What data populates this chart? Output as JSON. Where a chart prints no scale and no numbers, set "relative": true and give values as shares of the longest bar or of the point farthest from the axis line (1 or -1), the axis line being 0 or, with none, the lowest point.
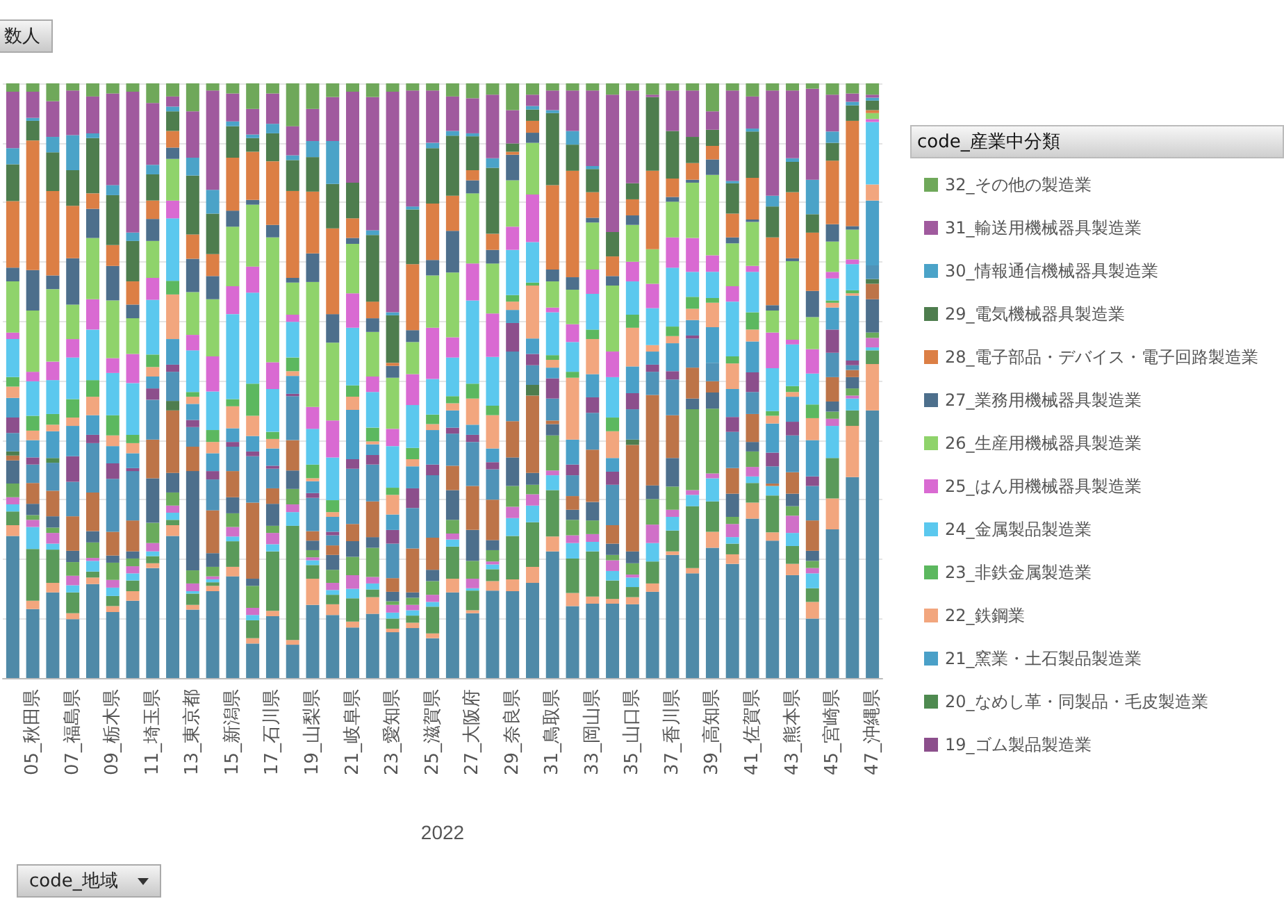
{
  "chart_data": {
    "type": "bar",
    "stacked": true,
    "relative": true,
    "grid": "y",
    "legend": "right",
    "legend_title": "code_産業中分類",
    "xlabel": "2022",
    "annotations": [
      "数人",
      "code_地域"
    ],
    "categories": [
      null,
      "05_秋田県",
      null,
      "07_福島県",
      null,
      "09_栃木県",
      null,
      "11_埼玉県",
      null,
      "13_東京都",
      null,
      "15_新潟県",
      null,
      "17_石川県",
      null,
      "19_山梨県",
      null,
      "21_岐阜県",
      null,
      "23_愛知県",
      null,
      "25_滋賀県",
      null,
      "27_大阪府",
      null,
      "29_奈良県",
      null,
      "31_鳥取県",
      null,
      "33_岡山県",
      null,
      "35_山口県",
      null,
      "37_香川県",
      null,
      "39_高知県",
      null,
      "41_佐賀県",
      null,
      "43_熊本県",
      null,
      "45_宮崎県",
      null,
      "47_沖縄県"
    ],
    "series": [
      {
        "color": "#4f8aa8",
        "values": [
          0.239,
          0.116,
          0.144,
          0.099,
          0.158,
          0.111,
          0.13,
          0.185,
          0.239,
          0.115,
          0.146,
          0.171,
          0.058,
          0.104,
          0.056,
          0.123,
          0.106,
          0.085,
          0.108,
          0.077,
          0.084,
          0.067,
          0.144,
          0.109,
          0.147,
          0.146,
          0.16,
          0.213,
          0.121,
          0.125,
          0.125,
          0.124,
          0.145,
          0.207,
          0.176,
          0.219,
          0.192,
          0.268,
          0.231,
          0.173,
          0.1,
          0.25,
          0.338,
          0.45
        ]
      },
      {
        "color": "#f2a67e",
        "values": [
          0.018,
          0.014,
          0.016,
          0.01,
          0.011,
          0.01,
          0.016,
          0.008,
          0.018,
          0.008,
          0.009,
          0.016,
          0.009,
          0.009,
          0.008,
          0.044,
          0.018,
          0.01,
          0.028,
          0.006,
          0.009,
          0.008,
          0.023,
          0.005,
          0.016,
          0.02,
          0.027,
          0.025,
          0.022,
          0.012,
          0.008,
          0.012,
          0.014,
          0.006,
          0.009,
          0.027,
          0.016,
          0.027,
          0.014,
          0.019,
          0.028,
          0.052,
          0.086,
          0.078
        ]
      },
      {
        "color": "#5a9a5a",
        "values": [
          0.023,
          0.087,
          0.056,
          0.035,
          0.01,
          0.017,
          0.018,
          0.012,
          0.009,
          0.019,
          0.006,
          0.043,
          0.03,
          0.1,
          0.192,
          0.023,
          0.016,
          0.039,
          0.013,
          0.017,
          0.012,
          0.045,
          0.054,
          0.033,
          0.02,
          0.073,
          0.075,
          0.078,
          0.058,
          0.076,
          0.031,
          0.017,
          0.037,
          0.035,
          0.104,
          0.051,
          0.018,
          0.033,
          0.062,
          0.03,
          0.023,
          0.068,
          0.026,
          0.023
        ]
      },
      {
        "color": "#5bc8ee",
        "values": [
          0.012,
          0.037,
          0.01,
          0.012,
          0.018,
          0.014,
          0.012,
          0.008,
          0.012,
          0.004,
          0.005,
          0.008,
          0.009,
          0.012,
          0.023,
          0.008,
          0.008,
          0.016,
          0.01,
          0.01,
          0.009,
          0.008,
          0.012,
          0.004,
          0.008,
          0.03,
          0.028,
          0.025,
          0.026,
          0.016,
          0.016,
          0.016,
          0.031,
          0.023,
          0.019,
          0.039,
          0.011,
          0.011,
          0.016,
          0.022,
          0.025,
          0.054,
          0.02,
          0.005
        ]
      },
      {
        "color": "#d070c8",
        "values": [
          0.012,
          0.012,
          0.018,
          0.016,
          0.005,
          0.013,
          0.012,
          0.014,
          0.012,
          0.013,
          0.005,
          0.016,
          0.012,
          0.019,
          0.013,
          0.005,
          0.012,
          0.023,
          0.011,
          0.013,
          0.009,
          0.012,
          0.01,
          0.016,
          0.005,
          0.019,
          0.019,
          0.008,
          0.013,
          0.013,
          0.018,
          0.005,
          0.031,
          0.012,
          0.008,
          0.008,
          0.022,
          0.016,
          0,
          0.029,
          0.009,
          0.012,
          0.005,
          0.016
        ]
      },
      {
        "color": "#6aab5c",
        "values": [
          0.023,
          0.008,
          0.009,
          0.023,
          0.026,
          0.029,
          0.013,
          0.034,
          0.022,
          0.022,
          0.016,
          0.023,
          0.037,
          0.012,
          0.026,
          0.012,
          0.022,
          0.031,
          0.049,
          0.006,
          0.012,
          0.023,
          0.023,
          0.03,
          0.019,
          0.035,
          0.016,
          0.059,
          0.026,
          0.023,
          0.009,
          0.019,
          0.043,
          0.039,
          0.136,
          0.109,
          0.012,
          0.026,
          0,
          0.016,
          0.012,
          0.012,
          0.012,
          0.009
        ]
      },
      {
        "color": "#4d6f8c",
        "values": [
          0.039,
          0.019,
          0.019,
          0.019,
          0.019,
          0.012,
          0.012,
          0.075,
          0.033,
          0.167,
          0.023,
          0.027,
          0.012,
          0.037,
          0.031,
          0.016,
          0.025,
          0.026,
          0.018,
          0.016,
          0.009,
          0.019,
          0.05,
          0.052,
          0.017,
          0.048,
          0.02,
          0.019,
          0.017,
          0.031,
          0.019,
          0.02,
          0.023,
          0.048,
          0.018,
          0.027,
          0.039,
          0.016,
          0,
          0.021,
          0.017,
          0.017,
          0.019,
          0.056
        ]
      },
      {
        "color": "#bd7448",
        "values": [
          0.008,
          0.035,
          0.043,
          0.058,
          0.065,
          0.04,
          0.052,
          0.065,
          0.105,
          0.041,
          0.072,
          0.044,
          0.128,
          0.026,
          0.051,
          0.016,
          0.016,
          0.029,
          0.06,
          0.023,
          0.074,
          0.054,
          0.041,
          0.074,
          0.068,
          0.061,
          0.13,
          0.006,
          0.023,
          0.088,
          0.031,
          0.179,
          0.152,
          0.072,
          0.052,
          0.019,
          0.043,
          0.047,
          0.004,
          0.036,
          0.051,
          0.041,
          0.012,
          0.026
        ]
      },
      {
        "color": "#4e7d4e",
        "values": [
          0.007,
          0,
          0,
          0,
          0,
          0,
          0,
          0,
          0.016,
          0,
          0,
          0,
          0,
          0,
          0,
          0,
          0,
          0,
          0,
          0,
          0,
          0,
          0,
          0,
          0,
          0,
          0.018,
          0,
          0,
          0,
          0,
          0.009,
          0,
          0,
          0,
          0,
          0,
          0,
          0,
          0,
          0,
          0,
          0,
          0.008
        ]
      },
      {
        "color": "#4f93b8",
        "values": [
          0.031,
          0.031,
          0.047,
          0.058,
          0.083,
          0.089,
          0.083,
          0.067,
          0.049,
          0.033,
          0.052,
          0.041,
          0.078,
          0.033,
          0.074,
          0.056,
          0.017,
          0.093,
          0.062,
          0.058,
          0.068,
          0.105,
          0.054,
          0.074,
          0.051,
          0.117,
          0.033,
          0.037,
          0.035,
          0.062,
          0.068,
          0.051,
          0.039,
          0.06,
          0.049,
          0.031,
          0.061,
          0.037,
          0.029,
          0.062,
          0.058,
          0.041,
          0.008,
          0.023
        ]
      },
      {
        "name": "19_ゴム製品製造業",
        "color": "#8c4f8c",
        "values": [
          0.026,
          0.012,
          0,
          0.043,
          0.014,
          0.026,
          0.005,
          0.019,
          0.012,
          0.012,
          0.014,
          0.008,
          0.008,
          0.005,
          0.004,
          0.008,
          0.006,
          0.016,
          0.016,
          0.023,
          0.033,
          0.018,
          0.01,
          0.012,
          0.012,
          0.048,
          0.019,
          0.034,
          0.018,
          0.026,
          0.022,
          0.027,
          0.012,
          0.014,
          0.005,
          0,
          0.025,
          0.033,
          0.023,
          0.023,
          0.016,
          0.039,
          0.008,
          0
        ]
      },
      {
        "name": "20_なめし革・同製品・毛皮製造業",
        "color": "#4e8a50",
        "values": [
          0,
          0,
          0.008,
          0,
          0,
          0,
          0,
          0,
          0,
          0,
          0,
          0,
          0,
          0,
          0,
          0,
          0,
          0,
          0,
          0,
          0,
          0,
          0,
          0,
          0,
          0,
          0,
          0,
          0,
          0,
          0,
          0,
          0,
          0,
          0,
          0,
          0,
          0,
          0,
          0,
          0,
          0,
          0,
          0
        ]
      },
      {
        "name": "21_窯業・土石製品製造業",
        "color": "#4aa0c8",
        "values": [
          0.033,
          0.029,
          0.045,
          0.051,
          0.033,
          0.029,
          0.025,
          0.02,
          0.043,
          0.027,
          0.03,
          0.023,
          0.026,
          0.029,
          0.03,
          0.02,
          0.025,
          0.083,
          0.018,
          0.026,
          0.037,
          0.058,
          0.029,
          0.017,
          0.023,
          0.022,
          0.026,
          0.018,
          0.042,
          0.039,
          0.023,
          0.045,
          0.022,
          0.047,
          0.026,
          0.06,
          0.047,
          0.052,
          0.049,
          0.042,
          0.061,
          0.037,
          0.109,
          0.109
        ]
      },
      {
        "name": "22_鉄鋼業",
        "color": "#f2a67e",
        "values": [
          0.019,
          0.016,
          0.011,
          0.014,
          0.031,
          0.018,
          0.017,
          0.016,
          0.075,
          0.012,
          0.019,
          0.037,
          0.034,
          0.016,
          0.008,
          0.005,
          0.008,
          0.022,
          0.005,
          0.033,
          0.012,
          0.01,
          0.012,
          0.044,
          0.056,
          0.014,
          0.089,
          0.013,
          0.104,
          0.059,
          0.045,
          0.065,
          0.011,
          0.012,
          0.019,
          0.041,
          0.043,
          0.02,
          0.013,
          0.008,
          0.037,
          0.008,
          0.004,
          0.027
        ]
      },
      {
        "name": "23_非鉄金属製造業",
        "color": "#5cb85f",
        "values": [
          0.016,
          0.025,
          0.018,
          0.031,
          0.028,
          0.034,
          0.014,
          0.021,
          0.023,
          0.008,
          0.02,
          0.012,
          0.054,
          0.012,
          0.023,
          0.023,
          0.02,
          0.019,
          0.023,
          0.012,
          0.019,
          0.016,
          0.012,
          0.025,
          0.016,
          0.011,
          0.005,
          0.008,
          0.01,
          0.016,
          0.023,
          0.022,
          0,
          0.016,
          0.02,
          0.008,
          0.012,
          0.029,
          0.008,
          0.01,
          0.023,
          0.004,
          0.005,
          0
        ]
      },
      {
        "name": "24_金属製品製造業",
        "color": "#5bc8ee",
        "values": [
          0.064,
          0.058,
          0.057,
          0.07,
          0.085,
          0.071,
          0.087,
          0.092,
          0.105,
          0.07,
          0.065,
          0.143,
          0.153,
          0.072,
          0.06,
          0.06,
          0.072,
          0.097,
          0.06,
          0.07,
          0.072,
          0.06,
          0.065,
          0.14,
          0.082,
          0.076,
          0.068,
          0.072,
          0.05,
          0.06,
          0.068,
          0.056,
          0.062,
          0.099,
          0.042,
          0.044,
          0.092,
          0.068,
          0.072,
          0.07,
          0.052,
          0.037,
          0.044,
          0.105
        ]
      },
      {
        "name": "25_はん用機械器具製造業",
        "color": "#d96ad2",
        "values": [
          0.011,
          0.016,
          0.031,
          0.031,
          0.051,
          0.025,
          0.049,
          0.037,
          0.03,
          0.026,
          0.059,
          0.047,
          0.044,
          0.045,
          0.012,
          0.037,
          0.062,
          0.058,
          0.026,
          0.029,
          0.052,
          0.086,
          0.034,
          0.062,
          0.073,
          0.039,
          0.08,
          0.008,
          0.03,
          0.041,
          0.043,
          0.033,
          0.041,
          0.051,
          0.057,
          0.028,
          0.026,
          0.01,
          0.06,
          0.008,
          0.041,
          0.011,
          0.008,
          0.005
        ]
      },
      {
        "name": "26_生産用機械器具製造業",
        "color": "#8fd36b",
        "values": [
          0.086,
          0.103,
          0.122,
          0.058,
          0.103,
          0.097,
          0.06,
          0.062,
          0.07,
          0.072,
          0.096,
          0.1,
          0.104,
          0.21,
          0.054,
          0.21,
          0.131,
          0.083,
          0.075,
          0.086,
          0.054,
          0.088,
          0.109,
          0.118,
          0.084,
          0.078,
          0.087,
          0.044,
          0.058,
          0.079,
          0.111,
          0.062,
          0.058,
          0.06,
          0.093,
          0.135,
          0.072,
          0.074,
          0.037,
          0.132,
          0.054,
          0.051,
          0.05,
          0.01
        ]
      },
      {
        "name": "27_業務用機械器具製造業",
        "color": "#4d6f8c",
        "values": [
          0.023,
          0.068,
          0.023,
          0.078,
          0.049,
          0.058,
          0.023,
          0.037,
          0.019,
          0.056,
          0.039,
          0.027,
          0.008,
          0.021,
          0.008,
          0.048,
          0.048,
          0.01,
          0.023,
          0.02,
          0.02,
          0.026,
          0.07,
          0.022,
          0.023,
          0.043,
          0.017,
          0.02,
          0.021,
          0.008,
          0.016,
          0.016,
          0,
          0.008,
          0.005,
          0.026,
          0.01,
          0.004,
          0.009,
          0.005,
          0.044,
          0.029,
          0.006,
          0
        ]
      },
      {
        "name": "28_電子部品・デバイス・電子回路製造業",
        "color": "#dc7f45",
        "values": [
          0.112,
          0.218,
          0.142,
          0.088,
          0.026,
          0.035,
          0.039,
          0.031,
          0.028,
          0.041,
          0.037,
          0.089,
          0.081,
          0.107,
          0.146,
          0.104,
          0.144,
          0.033,
          0.028,
          0.005,
          0.111,
          0.095,
          0.059,
          0.017,
          0.027,
          0.005,
          0.02,
          0.142,
          0.179,
          0.043,
          0.033,
          0.027,
          0.132,
          0.031,
          0.028,
          0.023,
          0.04,
          0.07,
          0.114,
          0.111,
          0.098,
          0.107,
          0.177,
          0.005
        ]
      },
      {
        "name": "29_電気機械器具製造業",
        "color": "#4e7d4e",
        "values": [
          0.062,
          0.033,
          0.065,
          0.06,
          0.093,
          0.084,
          0.068,
          0.044,
          0.033,
          0.099,
          0.068,
          0.053,
          0.023,
          0.047,
          0.052,
          0.058,
          0.075,
          0.06,
          0.112,
          0.08,
          0.092,
          0.093,
          0.101,
          0.057,
          0.111,
          0.014,
          0.019,
          0.121,
          0.044,
          0.039,
          0.041,
          0.027,
          0.124,
          0.08,
          0.044,
          0.027,
          0.051,
          0.078,
          0.052,
          0.051,
          0.031,
          0.03,
          0.026,
          0.016
        ]
      },
      {
        "name": "30_情報通信機械器具製造業",
        "color": "#4ba3c8",
        "values": [
          0.027,
          0.005,
          0.026,
          0.059,
          0.008,
          0.017,
          0.014,
          0.016,
          0.008,
          0.03,
          0.04,
          0.008,
          0.006,
          0.016,
          0.008,
          0.027,
          0.072,
          0,
          0.008,
          0.005,
          0.005,
          0.009,
          0.008,
          0.005,
          0.016,
          0,
          0.006,
          0.005,
          0.023,
          0.005,
          0,
          0,
          0,
          0,
          0,
          0,
          0.004,
          0.005,
          0.018,
          0.006,
          0.058,
          0.019,
          0.006,
          0.005
        ]
      },
      {
        "name": "31_輸送用機械器具製造業",
        "color": "#a05a9e",
        "values": [
          0.095,
          0.044,
          0.06,
          0.075,
          0.062,
          0.154,
          0.237,
          0.104,
          0.017,
          0.078,
          0.167,
          0.047,
          0.043,
          0.051,
          0.049,
          0.054,
          0.074,
          0.153,
          0.224,
          0.371,
          0.195,
          0.088,
          0.058,
          0.059,
          0.107,
          0.056,
          0.019,
          0.033,
          0.068,
          0.127,
          0.231,
          0.156,
          0.004,
          0.068,
          0.078,
          0.031,
          0.152,
          0.054,
          0.177,
          0.114,
          0.153,
          0.062,
          0.014,
          0.005
        ]
      },
      {
        "name": "32_その他の製造業",
        "color": "#6fa85a",
        "values": [
          0.014,
          0.014,
          0.03,
          0.012,
          0.022,
          0.017,
          0.014,
          0.033,
          0.022,
          0.047,
          0.012,
          0.017,
          0.043,
          0.017,
          0.072,
          0.043,
          0.023,
          0.014,
          0.023,
          0.014,
          0.012,
          0.012,
          0.022,
          0.025,
          0.019,
          0.045,
          0.019,
          0.012,
          0.012,
          0.012,
          0.019,
          0.012,
          0.019,
          0.012,
          0.012,
          0.047,
          0.012,
          0.022,
          0.012,
          0.012,
          0.009,
          0.019,
          0.017,
          0.019
        ]
      }
    ]
  }
}
